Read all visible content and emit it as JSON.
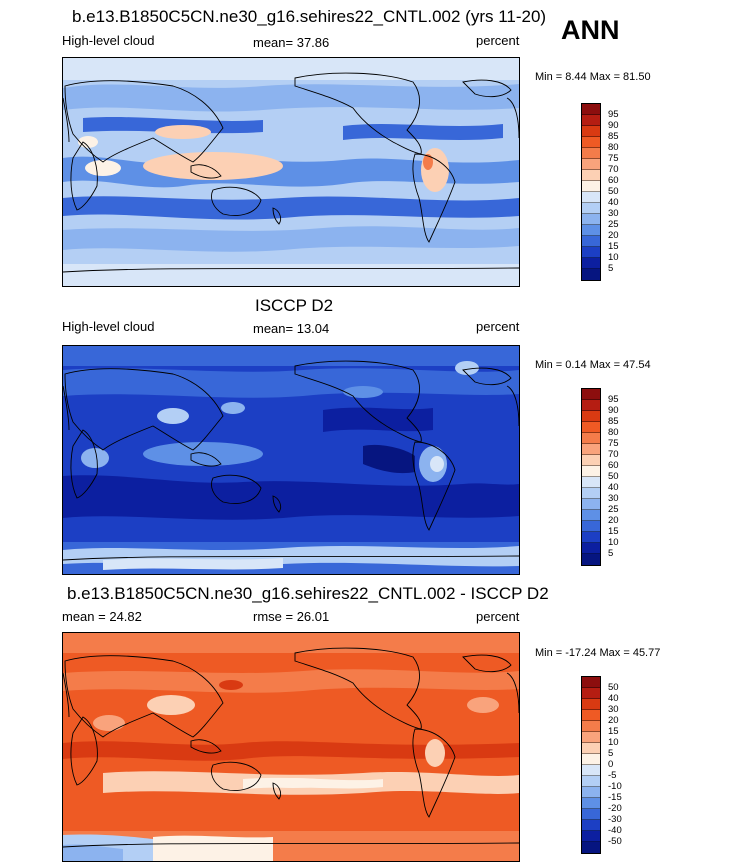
{
  "season": "ANN",
  "panels": [
    {
      "title": "b.e13.B1850C5CN.ne30_g16.sehires22_CNTL.002 (yrs 11-20)",
      "left": "High-level cloud",
      "center": "mean=  37.86",
      "right": "percent",
      "minmax": "Min =   8.44 Max =  81.50",
      "colorbar_labels": [
        "95",
        "90",
        "85",
        "80",
        "75",
        "70",
        "60",
        "50",
        "40",
        "30",
        "25",
        "20",
        "15",
        "10",
        "5"
      ],
      "colorbar_colors": [
        "#8c0e0e",
        "#b51d12",
        "#d93a12",
        "#ef5a24",
        "#f47c4a",
        "#f9a37c",
        "#fcd0b4",
        "#fdf2e6",
        "#d8e6f8",
        "#b3cff5",
        "#8cb3ef",
        "#5e90e6",
        "#3867d8",
        "#1c3fc4",
        "#0c1fa0",
        "#061580"
      ],
      "background": "#b4cff4"
    },
    {
      "title": "ISCCP D2",
      "left": "High-level cloud",
      "center": "mean=  13.04",
      "right": "percent",
      "minmax": "Min =   0.14 Max =  47.54",
      "colorbar_labels": [
        "95",
        "90",
        "85",
        "80",
        "75",
        "70",
        "60",
        "50",
        "40",
        "30",
        "25",
        "20",
        "15",
        "10",
        "5"
      ],
      "colorbar_colors": [
        "#8c0e0e",
        "#b51d12",
        "#d93a12",
        "#ef5a24",
        "#f47c4a",
        "#f9a37c",
        "#fcd0b4",
        "#fdf2e6",
        "#d8e6f8",
        "#b3cff5",
        "#8cb3ef",
        "#5e90e6",
        "#3867d8",
        "#1c3fc4",
        "#0c1fa0",
        "#061580"
      ],
      "background": "#1838c0"
    },
    {
      "title": "b.e13.B1850C5CN.ne30_g16.sehires22_CNTL.002 - ISCCP D2",
      "left": "mean =  24.82",
      "center": "rmse =  26.01",
      "right": "percent",
      "minmax": "Min = -17.24 Max =  45.77",
      "colorbar_labels": [
        "50",
        "40",
        "30",
        "20",
        "15",
        "10",
        "5",
        "0",
        "-5",
        "-10",
        "-15",
        "-20",
        "-30",
        "-40",
        "-50"
      ],
      "colorbar_colors": [
        "#8c0e0e",
        "#b51d12",
        "#d93a12",
        "#ef5a24",
        "#f47c4a",
        "#f9a37c",
        "#fcd0b4",
        "#fdf2e6",
        "#d8e6f8",
        "#b3cff5",
        "#8cb3ef",
        "#5e90e6",
        "#3867d8",
        "#1c3fc4",
        "#0c1fa0",
        "#061580"
      ],
      "background": "#ee5a24"
    }
  ]
}
